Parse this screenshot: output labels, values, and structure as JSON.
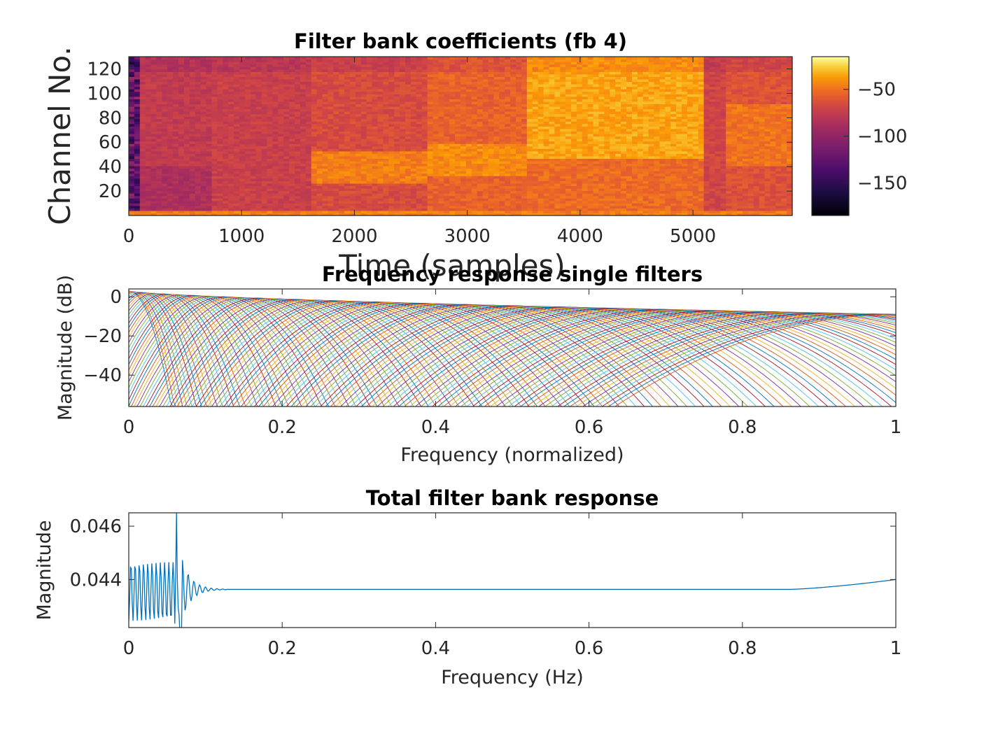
{
  "chart_data": [
    {
      "type": "heatmap",
      "title": "Filter bank coefficients (fb 4)",
      "xlabel": "Time (samples)",
      "ylabel": "Channel No.",
      "xlim": [
        0,
        5880
      ],
      "ylim": [
        0,
        130
      ],
      "x_ticks": [
        "0",
        "1000",
        "2000",
        "3000",
        "4000",
        "5000"
      ],
      "y_ticks": [
        "20",
        "40",
        "60",
        "80",
        "100",
        "120"
      ],
      "colorbar": {
        "range": [
          -185,
          -15
        ],
        "ticks": [
          "-50",
          "-100",
          "-150"
        ],
        "colormap": "inferno"
      }
    },
    {
      "type": "line",
      "title": "Frequency response single filters",
      "xlabel": "Frequency (normalized)",
      "ylabel": "Magnitude (dB)",
      "xlim": [
        0,
        1
      ],
      "ylim": [
        -56,
        4
      ],
      "x_ticks": [
        "0",
        "0.2",
        "0.4",
        "0.6",
        "0.8",
        "1"
      ],
      "y_ticks": [
        "0",
        "−20",
        "−40"
      ],
      "n_filters": 128,
      "peak_gain_db_range": [
        3,
        -9
      ]
    },
    {
      "type": "line",
      "title": "Total filter bank response",
      "xlabel": "Frequency (Hz)",
      "ylabel": "Magnitude",
      "xlim": [
        0,
        1
      ],
      "ylim": [
        0.0422,
        0.0465
      ],
      "x_ticks": [
        "0",
        "0.2",
        "0.4",
        "0.6",
        "0.8",
        "1"
      ],
      "y_ticks": [
        "0.046",
        "0.044"
      ],
      "x": [
        0,
        0.06,
        0.062,
        0.07,
        0.08,
        0.1,
        0.2,
        0.4,
        0.6,
        0.8,
        0.86,
        0.9,
        0.95,
        1.0
      ],
      "y": [
        0.0442,
        0.0447,
        0.0465,
        0.0442,
        0.0438,
        0.04363,
        0.04363,
        0.04363,
        0.04363,
        0.04363,
        0.04363,
        0.0437,
        0.0438,
        0.044
      ]
    }
  ],
  "colors": {
    "palette": [
      "#0072BD",
      "#D95319",
      "#EDB120",
      "#7E2F8E",
      "#77AC30",
      "#4DBEEE",
      "#A2142F"
    ],
    "total_line": "#0072BD"
  }
}
